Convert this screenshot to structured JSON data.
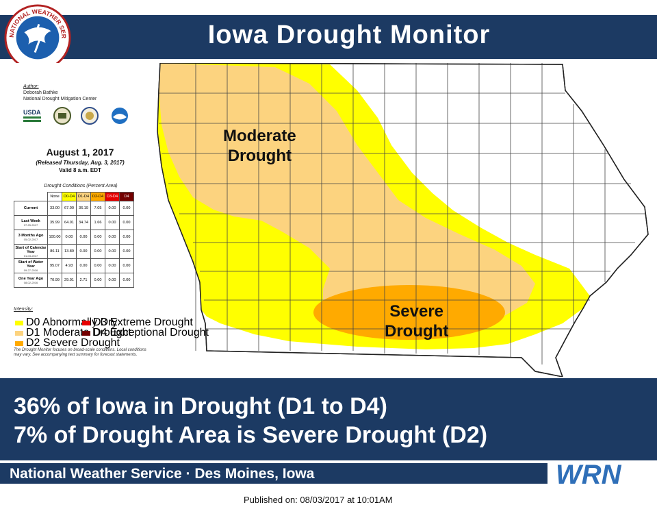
{
  "header": {
    "title": "Iowa Drought Monitor"
  },
  "logo": {
    "text": "NATIONAL WEATHER SERVICE"
  },
  "author": {
    "label": "Author:",
    "name": "Deborah Bathke",
    "org": "National Drought Mitigation Center"
  },
  "agencies": {
    "usda_text": "USDA"
  },
  "date_block": {
    "date": "August 1, 2017",
    "released": "(Released Thursday, Aug. 3, 2017)",
    "valid": "Valid 8 a.m. EDT"
  },
  "table": {
    "caption": "Drought Conditions (Percent Area)",
    "headers": [
      "None",
      "D0-D4",
      "D1-D4",
      "D2-D4",
      "D3-D4",
      "D4"
    ],
    "header_colors": [
      "#ffffff",
      "#ffff00",
      "#fcd37f",
      "#ffaa00",
      "#e60000",
      "#730000"
    ],
    "rows": [
      {
        "label": "Current",
        "sub": "",
        "values": [
          "33.00",
          "67.00",
          "36.19",
          "7.05",
          "0.00",
          "0.00"
        ]
      },
      {
        "label": "Last Week",
        "sub": "07-25-2017",
        "values": [
          "35.99",
          "64.01",
          "34.74",
          "1.66",
          "0.00",
          "0.00"
        ]
      },
      {
        "label": "3 Months Ago",
        "sub": "05-02-2017",
        "values": [
          "100.00",
          "0.00",
          "0.00",
          "0.00",
          "0.00",
          "0.00"
        ]
      },
      {
        "label": "Start of Calendar Year",
        "sub": "01-03-2017",
        "values": [
          "86.11",
          "13.89",
          "0.00",
          "0.00",
          "0.00",
          "0.00"
        ]
      },
      {
        "label": "Start of Water Year",
        "sub": "09-27-2016",
        "values": [
          "95.07",
          "4.93",
          "0.00",
          "0.00",
          "0.00",
          "0.00"
        ]
      },
      {
        "label": "One Year Ago",
        "sub": "08-02-2016",
        "values": [
          "70.99",
          "29.01",
          "2.71",
          "0.00",
          "0.00",
          "0.00"
        ]
      }
    ]
  },
  "legend": {
    "title": "Intensity:",
    "items": [
      {
        "label": "D0 Abnormally Dry",
        "color": "#ffff00"
      },
      {
        "label": "D1 Moderate Drought",
        "color": "#fcd37f"
      },
      {
        "label": "D2 Severe Drought",
        "color": "#ffaa00"
      },
      {
        "label": "D3 Extreme Drought",
        "color": "#e60000"
      },
      {
        "label": "D4 Exceptional Drought",
        "color": "#730000"
      }
    ],
    "note": "The Drought Monitor focuses on broad-scale conditions. Local conditions may vary. See accompanying text summary for forecast statements."
  },
  "map": {
    "label_moderate": [
      "Moderate",
      "Drought"
    ],
    "label_severe": [
      "Severe",
      "Drought"
    ],
    "colors": {
      "d0": "#ffff00",
      "d1": "#fcd37f",
      "d2": "#ffaa00",
      "none": "#ffffff"
    }
  },
  "summary": {
    "line1": "36% of Iowa in Drought (D1 to D4)",
    "line2": "7% of Drought Area is Severe Drought (D2)"
  },
  "footer": {
    "office": "National Weather Service · Des Moines, Iowa",
    "wrn": "WRN",
    "published": "Published on: 08/03/2017 at 10:01AM"
  },
  "colors": {
    "navy": "#1c3a63"
  }
}
